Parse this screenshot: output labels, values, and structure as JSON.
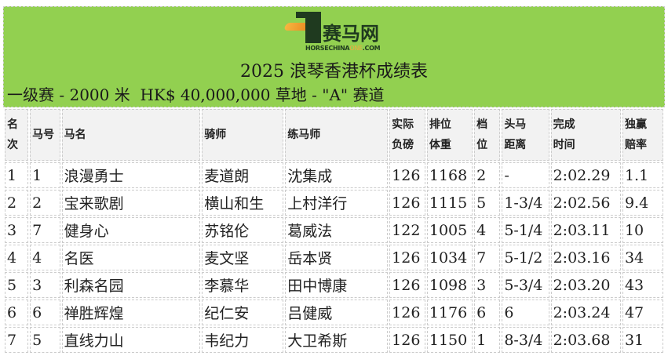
{
  "logo": {
    "brand_cn": "赛马网",
    "brand_en_prefix": "HORSECHINA",
    "brand_en_accent": "ONE",
    "brand_en_suffix": ".COM",
    "accent_color": "#f6a640"
  },
  "banner_color": "#92d050",
  "title": "2025 浪琴香港杯成绩表",
  "subtitle": "一级赛 - 2000 米  HK$ 40,000,000 草地 - \"A\" 赛道",
  "columns": [
    "名次",
    "马号",
    "马名",
    "骑师",
    "练马师",
    "实际负磅",
    "排位体重",
    "档位",
    "头马距离",
    "完成时间",
    "独赢赔率"
  ],
  "rows": [
    [
      "1",
      "1",
      "浪漫勇士",
      "麦道朗",
      "沈集成",
      "126",
      "1168",
      "2",
      "-",
      "2:02.29",
      "1.1"
    ],
    [
      "2",
      "2",
      "宝来歌剧",
      "横山和生",
      "上村洋行",
      "126",
      "1115",
      "5",
      "1-3/4",
      "2:02.56",
      "9.4"
    ],
    [
      "3",
      "7",
      "健身心",
      "苏铭伦",
      "葛威法",
      "122",
      "1005",
      "4",
      "5-1/4",
      "2:03.11",
      "10"
    ],
    [
      "4",
      "4",
      "名医",
      "麦文坚",
      "岳本贤",
      "126",
      "1034",
      "7",
      "5-1/2",
      "2:03.16",
      "34"
    ],
    [
      "5",
      "3",
      "利森名园",
      "李慕华",
      "田中博康",
      "126",
      "1098",
      "3",
      "5-3/4",
      "2:03.20",
      "43"
    ],
    [
      "6",
      "6",
      "禅胜辉煌",
      "纪仁安",
      "吕健威",
      "126",
      "1176",
      "6",
      "6",
      "2:03.24",
      "47"
    ],
    [
      "7",
      "5",
      "直线力山",
      "韦纪力",
      "大卫希斯",
      "126",
      "1150",
      "1",
      "8-3/4",
      "2:03.68",
      "31"
    ]
  ]
}
